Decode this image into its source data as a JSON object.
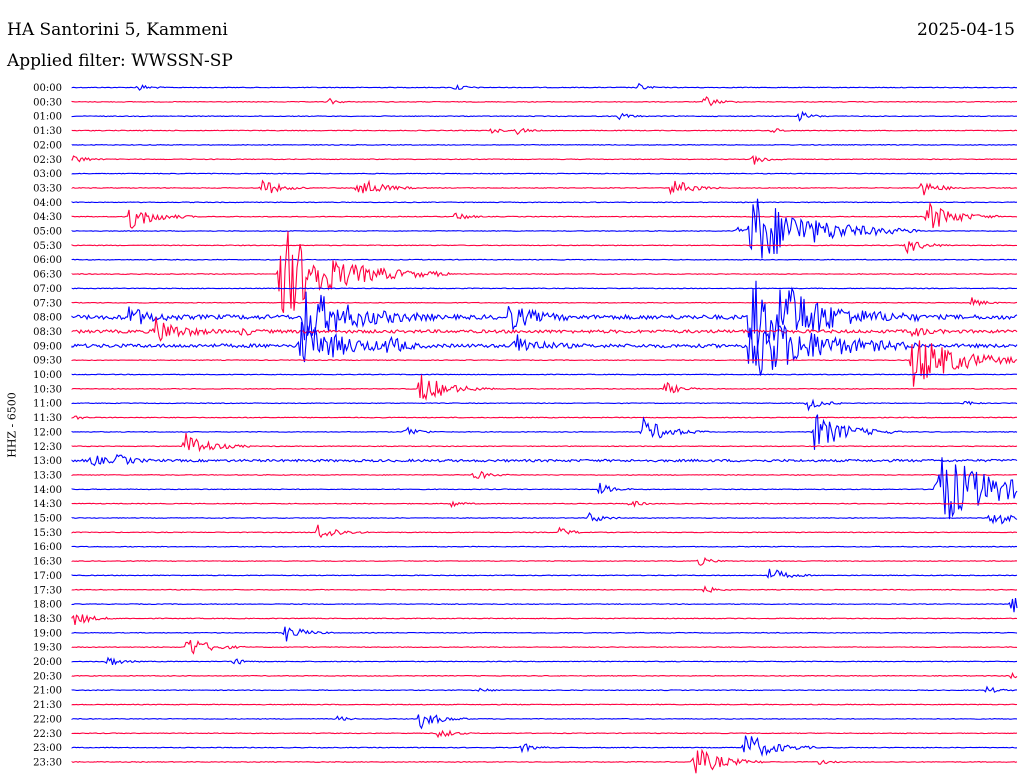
{
  "header": {
    "title": "HA Santorini 5, Kammeni",
    "date": "2025-04-15",
    "filter": "Applied filter: WWSSN-SP"
  },
  "channel_label": "HHZ - 6500",
  "colors": {
    "odd_row": "#0000ff",
    "even_row": "#ff0040"
  },
  "rows": [
    {
      "label": "00:00"
    },
    {
      "label": "00:30"
    },
    {
      "label": "01:00"
    },
    {
      "label": "01:30"
    },
    {
      "label": "02:00"
    },
    {
      "label": "02:30"
    },
    {
      "label": "03:00"
    },
    {
      "label": "03:30"
    },
    {
      "label": "04:00"
    },
    {
      "label": "04:30"
    },
    {
      "label": "05:00"
    },
    {
      "label": "05:30"
    },
    {
      "label": "06:00"
    },
    {
      "label": "06:30"
    },
    {
      "label": "07:00"
    },
    {
      "label": "07:30"
    },
    {
      "label": "08:00"
    },
    {
      "label": "08:30"
    },
    {
      "label": "09:00"
    },
    {
      "label": "09:30"
    },
    {
      "label": "10:00"
    },
    {
      "label": "10:30"
    },
    {
      "label": "11:00"
    },
    {
      "label": "11:30"
    },
    {
      "label": "12:00"
    },
    {
      "label": "12:30"
    },
    {
      "label": "13:00"
    },
    {
      "label": "13:30"
    },
    {
      "label": "14:00"
    },
    {
      "label": "14:30"
    },
    {
      "label": "15:00"
    },
    {
      "label": "15:30"
    },
    {
      "label": "16:00"
    },
    {
      "label": "16:30"
    },
    {
      "label": "17:00"
    },
    {
      "label": "17:30"
    },
    {
      "label": "18:00"
    },
    {
      "label": "18:30"
    },
    {
      "label": "19:00"
    },
    {
      "label": "19:30"
    },
    {
      "label": "20:00"
    },
    {
      "label": "20:30"
    },
    {
      "label": "21:00"
    },
    {
      "label": "21:30"
    },
    {
      "label": "22:00"
    },
    {
      "label": "22:30"
    },
    {
      "label": "23:00"
    },
    {
      "label": "23:30"
    }
  ]
}
